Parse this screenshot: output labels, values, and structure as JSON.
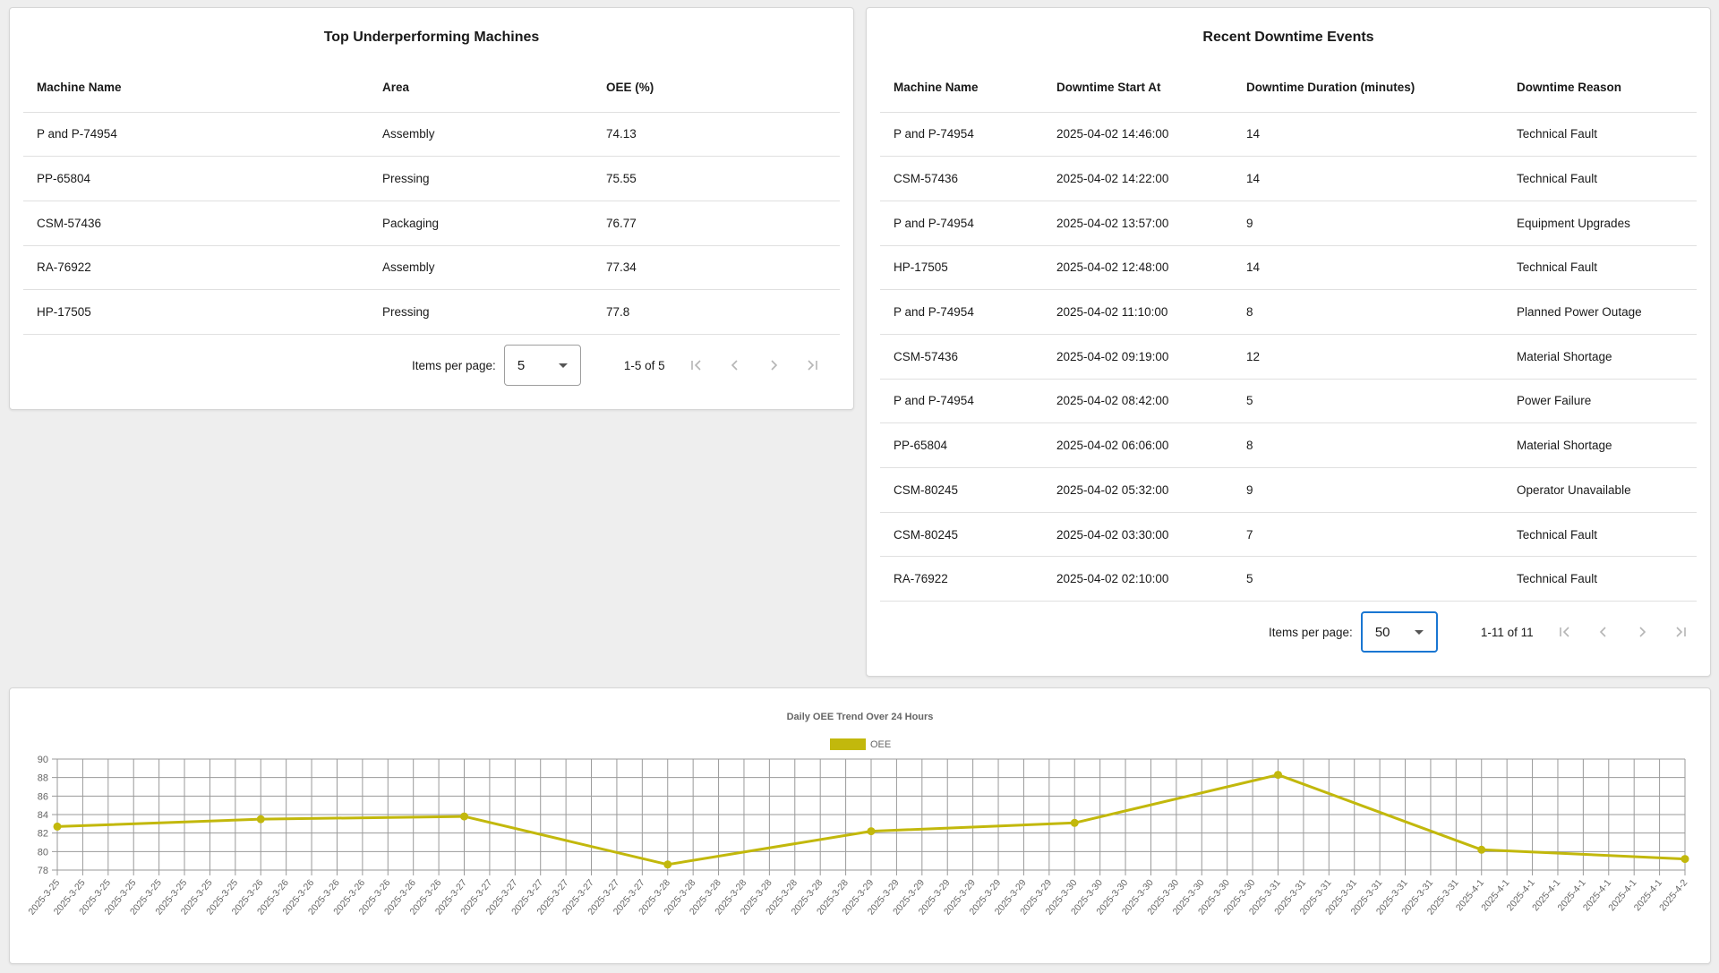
{
  "left_table": {
    "title": "Top Underperforming Machines",
    "columns": [
      "Machine Name",
      "Area",
      "OEE (%)"
    ],
    "rows": [
      [
        "P and P-74954",
        "Assembly",
        "74.13"
      ],
      [
        "PP-65804",
        "Pressing",
        "75.55"
      ],
      [
        "CSM-57436",
        "Packaging",
        "76.77"
      ],
      [
        "RA-76922",
        "Assembly",
        "77.34"
      ],
      [
        "HP-17505",
        "Pressing",
        "77.8"
      ]
    ],
    "paginator": {
      "items_per_page_label": "Items per page:",
      "items_per_page": "5",
      "range": "1-5 of 5"
    }
  },
  "right_table": {
    "title": "Recent Downtime Events",
    "columns": [
      "Machine Name",
      "Downtime Start At",
      "Downtime Duration (minutes)",
      "Downtime Reason"
    ],
    "rows": [
      [
        "P and P-74954",
        "2025-04-02 14:46:00",
        "14",
        "Technical Fault"
      ],
      [
        "CSM-57436",
        "2025-04-02 14:22:00",
        "14",
        "Technical Fault"
      ],
      [
        "P and P-74954",
        "2025-04-02 13:57:00",
        "9",
        "Equipment Upgrades"
      ],
      [
        "HP-17505",
        "2025-04-02 12:48:00",
        "14",
        "Technical Fault"
      ],
      [
        "P and P-74954",
        "2025-04-02 11:10:00",
        "8",
        "Planned Power Outage"
      ],
      [
        "CSM-57436",
        "2025-04-02 09:19:00",
        "12",
        "Material Shortage"
      ],
      [
        "P and P-74954",
        "2025-04-02 08:42:00",
        "5",
        "Power Failure"
      ],
      [
        "PP-65804",
        "2025-04-02 06:06:00",
        "8",
        "Material Shortage"
      ],
      [
        "CSM-80245",
        "2025-04-02 05:32:00",
        "9",
        "Operator Unavailable"
      ],
      [
        "CSM-80245",
        "2025-04-02 03:30:00",
        "7",
        "Technical Fault"
      ],
      [
        "RA-76922",
        "2025-04-02 02:10:00",
        "5",
        "Technical Fault"
      ]
    ],
    "paginator": {
      "items_per_page_label": "Items per page:",
      "items_per_page": "50",
      "range": "1-11 of 11"
    }
  },
  "chart_data": {
    "type": "line",
    "title": "Daily OEE Trend Over 24 Hours",
    "series_name": "OEE",
    "color": "#c2b80c",
    "ylim": [
      78,
      90
    ],
    "yticks": [
      78,
      80,
      82,
      84,
      86,
      88,
      90
    ],
    "grid": true,
    "legend": "top-center",
    "categories": [
      "2025-3-25",
      "2025-3-25",
      "2025-3-25",
      "2025-3-25",
      "2025-3-25",
      "2025-3-25",
      "2025-3-25",
      "2025-3-25",
      "2025-3-26",
      "2025-3-26",
      "2025-3-26",
      "2025-3-26",
      "2025-3-26",
      "2025-3-26",
      "2025-3-26",
      "2025-3-26",
      "2025-3-27",
      "2025-3-27",
      "2025-3-27",
      "2025-3-27",
      "2025-3-27",
      "2025-3-27",
      "2025-3-27",
      "2025-3-27",
      "2025-3-28",
      "2025-3-28",
      "2025-3-28",
      "2025-3-28",
      "2025-3-28",
      "2025-3-28",
      "2025-3-28",
      "2025-3-28",
      "2025-3-29",
      "2025-3-29",
      "2025-3-29",
      "2025-3-29",
      "2025-3-29",
      "2025-3-29",
      "2025-3-29",
      "2025-3-29",
      "2025-3-30",
      "2025-3-30",
      "2025-3-30",
      "2025-3-30",
      "2025-3-30",
      "2025-3-30",
      "2025-3-30",
      "2025-3-30",
      "2025-3-31",
      "2025-3-31",
      "2025-3-31",
      "2025-3-31",
      "2025-3-31",
      "2025-3-31",
      "2025-3-31",
      "2025-3-31",
      "2025-4-1",
      "2025-4-1",
      "2025-4-1",
      "2025-4-1",
      "2025-4-1",
      "2025-4-1",
      "2025-4-1",
      "2025-4-1",
      "2025-4-2"
    ],
    "points": [
      {
        "index": 0,
        "value": 82.7
      },
      {
        "index": 8,
        "value": 83.5
      },
      {
        "index": 16,
        "value": 83.8
      },
      {
        "index": 24,
        "value": 78.6
      },
      {
        "index": 32,
        "value": 82.2
      },
      {
        "index": 40,
        "value": 83.1
      },
      {
        "index": 48,
        "value": 88.3
      },
      {
        "index": 56,
        "value": 80.2
      },
      {
        "index": 64,
        "value": 79.2
      }
    ]
  }
}
